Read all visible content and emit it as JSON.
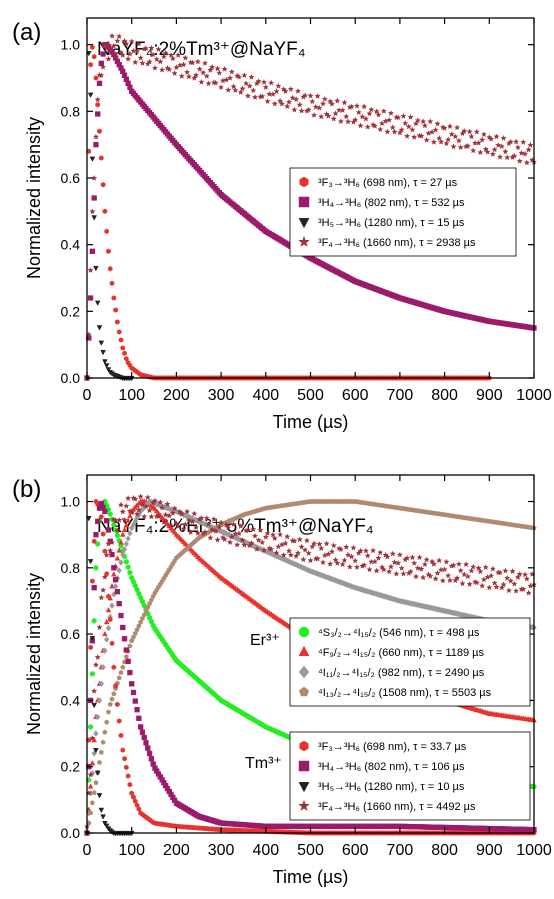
{
  "chart_data": [
    {
      "type": "scatter",
      "panel_label": "(a)",
      "title": "NaYF₄:2%Tm³⁺@NaYF₄",
      "xlabel": "Time (µs)",
      "ylabel": "Normalized intensity",
      "xlim": [
        0,
        1000
      ],
      "ylim": [
        0,
        1.08
      ],
      "xticks": [
        0,
        100,
        200,
        300,
        400,
        500,
        600,
        700,
        800,
        900,
        1000
      ],
      "yticks": [
        0.0,
        0.2,
        0.4,
        0.6,
        0.8,
        1.0
      ],
      "grid": false,
      "legend_position": "right-middle",
      "series": [
        {
          "name": "³F₃→³H₆  (698 nm), τ = 27 µs",
          "color": "#e8322d",
          "marker": "hexagon",
          "x": [
            0,
            5,
            10,
            15,
            20,
            25,
            30,
            40,
            50,
            60,
            70,
            80,
            90,
            100,
            120,
            150,
            200,
            300,
            400,
            500,
            600,
            700,
            800,
            900
          ],
          "y": [
            0.0,
            0.85,
            1.0,
            0.98,
            0.9,
            0.8,
            0.7,
            0.5,
            0.35,
            0.24,
            0.15,
            0.09,
            0.05,
            0.03,
            0.01,
            0.0,
            0.0,
            0.0,
            0.0,
            0.0,
            0.0,
            0.0,
            0.0,
            0.0
          ]
        },
        {
          "name": "³H₄→³H₆  (802 nm), τ =  532 µs",
          "color": "#9c1a6c",
          "marker": "square",
          "x": [
            0,
            10,
            20,
            30,
            40,
            45,
            50,
            60,
            80,
            100,
            150,
            200,
            300,
            400,
            500,
            600,
            700,
            800,
            900,
            1000
          ],
          "y": [
            0.0,
            0.3,
            0.7,
            0.93,
            1.0,
            1.0,
            0.99,
            0.97,
            0.92,
            0.86,
            0.78,
            0.7,
            0.55,
            0.44,
            0.36,
            0.29,
            0.24,
            0.2,
            0.17,
            0.15
          ]
        },
        {
          "name": "³H₅→³H₆  (1280 nm), τ = 15 µs",
          "color": "#222222",
          "marker": "triangle-down",
          "x": [
            0,
            3,
            5,
            10,
            15,
            20,
            25,
            30,
            40,
            50,
            60,
            80,
            100
          ],
          "y": [
            0.0,
            0.95,
            1.0,
            0.75,
            0.52,
            0.33,
            0.2,
            0.12,
            0.05,
            0.02,
            0.01,
            0.0,
            0.0
          ]
        },
        {
          "name": "³F₄→³H₆  (1660 nm), τ = 2938 µs",
          "color": "#a0303a",
          "marker": "star",
          "x": [
            0,
            10,
            20,
            30,
            40,
            50,
            60,
            70,
            80,
            100,
            150,
            200,
            300,
            400,
            500,
            600,
            700,
            800,
            900,
            1000
          ],
          "y": [
            0.0,
            0.4,
            0.75,
            0.92,
            0.97,
            0.99,
            1.0,
            1.0,
            0.99,
            0.98,
            0.96,
            0.94,
            0.9,
            0.86,
            0.82,
            0.79,
            0.76,
            0.73,
            0.7,
            0.67
          ]
        }
      ]
    },
    {
      "type": "scatter",
      "panel_label": "(b)",
      "title": "NaYF₄:2%Er³⁺,5%Tm³⁺@NaYF₄",
      "xlabel": "Time (µs)",
      "ylabel": "Normalized intensity",
      "xlim": [
        0,
        1000
      ],
      "ylim": [
        0,
        1.08
      ],
      "xticks": [
        0,
        100,
        200,
        300,
        400,
        500,
        600,
        700,
        800,
        900,
        1000
      ],
      "yticks": [
        0.0,
        0.2,
        0.4,
        0.6,
        0.8,
        1.0
      ],
      "grid": false,
      "annotations": [
        "Er³⁺",
        "Tm³⁺"
      ],
      "legend_position": "right-bottom",
      "series": [
        {
          "name": "⁴S₃/₂→⁴I₁₅/₂  (546 nm), τ = 498 µs",
          "color": "#22ee22",
          "marker": "circle",
          "group": "Er",
          "x": [
            0,
            10,
            20,
            30,
            40,
            50,
            60,
            80,
            100,
            150,
            200,
            300,
            400,
            500,
            600,
            700,
            800,
            900,
            1000
          ],
          "y": [
            0.0,
            0.4,
            0.8,
            0.98,
            1.0,
            0.97,
            0.93,
            0.85,
            0.77,
            0.62,
            0.52,
            0.4,
            0.32,
            0.26,
            0.22,
            0.19,
            0.17,
            0.15,
            0.14
          ]
        },
        {
          "name": "⁴F₉/₂→⁴I₁₅/₂  (660 nm), τ = 1189 µs",
          "color": "#e8322d",
          "marker": "triangle",
          "group": "Er",
          "x": [
            0,
            20,
            40,
            60,
            80,
            100,
            120,
            130,
            150,
            200,
            250,
            300,
            400,
            500,
            600,
            700,
            800,
            900,
            1000
          ],
          "y": [
            0.0,
            0.35,
            0.6,
            0.78,
            0.9,
            0.97,
            1.0,
            1.0,
            0.98,
            0.9,
            0.83,
            0.77,
            0.67,
            0.58,
            0.51,
            0.45,
            0.4,
            0.36,
            0.34
          ]
        },
        {
          "name": "⁴I₁₁/₂→⁴I₁₅/₂  (982 nm), τ = 2490 µs",
          "color": "#999999",
          "marker": "diamond",
          "group": "Er",
          "x": [
            0,
            20,
            40,
            60,
            80,
            100,
            120,
            140,
            160,
            200,
            300,
            400,
            500,
            600,
            700,
            800,
            900,
            1000
          ],
          "y": [
            0.0,
            0.3,
            0.55,
            0.72,
            0.84,
            0.92,
            0.97,
            1.0,
            0.99,
            0.97,
            0.91,
            0.85,
            0.79,
            0.74,
            0.7,
            0.67,
            0.64,
            0.62
          ]
        },
        {
          "name": "⁴I₁₃/₂→⁴I₁₅/₂  (1508 nm), τ = 5503 µs",
          "color": "#b08a6e",
          "marker": "pentagon",
          "group": "Er",
          "x": [
            0,
            50,
            100,
            150,
            200,
            250,
            300,
            350,
            400,
            450,
            500,
            600,
            700,
            800,
            900,
            1000
          ],
          "y": [
            0.0,
            0.38,
            0.58,
            0.72,
            0.83,
            0.89,
            0.93,
            0.96,
            0.98,
            0.99,
            1.0,
            1.0,
            0.98,
            0.96,
            0.94,
            0.92
          ]
        },
        {
          "name": "³F₃→³H₆  (698 nm), τ = 33.7 µs",
          "color": "#e8322d",
          "marker": "hexagon",
          "group": "Tm",
          "x": [
            0,
            10,
            20,
            30,
            40,
            50,
            60,
            70,
            80,
            100,
            120,
            150,
            200,
            300,
            500,
            1000
          ],
          "y": [
            0.0,
            0.7,
            1.0,
            0.98,
            0.85,
            0.68,
            0.5,
            0.36,
            0.25,
            0.12,
            0.06,
            0.03,
            0.02,
            0.01,
            0.0,
            0.0
          ]
        },
        {
          "name": "³H₄→³H₆  (802 nm), τ = 106 µs",
          "color": "#9c1a6c",
          "marker": "square",
          "group": "Tm",
          "x": [
            0,
            10,
            20,
            30,
            40,
            50,
            60,
            80,
            100,
            120,
            150,
            200,
            250,
            300,
            400,
            500,
            700,
            1000
          ],
          "y": [
            0.0,
            0.5,
            0.9,
            1.0,
            0.97,
            0.9,
            0.8,
            0.62,
            0.45,
            0.32,
            0.2,
            0.09,
            0.05,
            0.03,
            0.02,
            0.02,
            0.02,
            0.01
          ]
        },
        {
          "name": "³H₅→³H₆  (1280 nm), τ = 10 µs",
          "color": "#222222",
          "marker": "triangle-down",
          "group": "Tm",
          "x": [
            0,
            3,
            5,
            10,
            15,
            20,
            30,
            40,
            50,
            60,
            80,
            100
          ],
          "y": [
            0.0,
            0.9,
            1.0,
            0.7,
            0.42,
            0.25,
            0.08,
            0.03,
            0.01,
            0.0,
            0.0,
            0.0
          ]
        },
        {
          "name": "³F₄→³H₆  (1660 nm), τ = 4492 µs",
          "color": "#a0303a",
          "marker": "star",
          "group": "Tm",
          "x": [
            0,
            20,
            40,
            60,
            80,
            100,
            150,
            200,
            250,
            300,
            400,
            500,
            600,
            700,
            800,
            900,
            1000
          ],
          "y": [
            0.0,
            0.5,
            0.8,
            0.92,
            0.97,
            0.99,
            0.98,
            0.95,
            0.93,
            0.91,
            0.88,
            0.85,
            0.83,
            0.81,
            0.79,
            0.77,
            0.75
          ]
        }
      ]
    }
  ]
}
